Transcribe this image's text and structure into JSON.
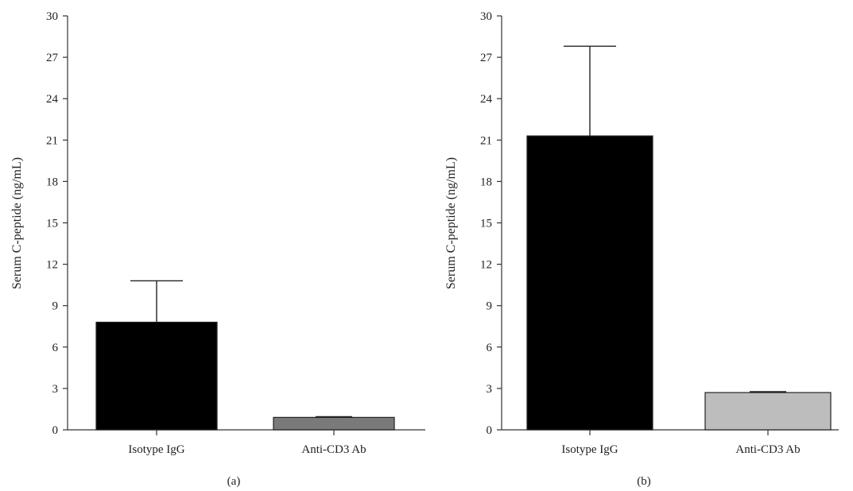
{
  "chart_data": [
    {
      "type": "bar",
      "panel_label": "(a)",
      "ylabel": "Serum C-peptide (ng/mL)",
      "xlabel": "",
      "ylim": [
        0,
        30
      ],
      "yticks": [
        0,
        3,
        6,
        9,
        12,
        15,
        18,
        21,
        24,
        27,
        30
      ],
      "yticks_text": [
        "0",
        "3",
        "6",
        "9",
        "12",
        "15",
        "18",
        "21",
        "24",
        "27",
        "30"
      ],
      "categories": [
        "Isotype IgG",
        "Anti-CD3 Ab"
      ],
      "values": [
        7.8,
        0.9
      ],
      "errors": [
        3.0,
        0.05
      ],
      "colors": [
        "#000000",
        "#7a7a7a"
      ],
      "grid": false
    },
    {
      "type": "bar",
      "panel_label": "(b)",
      "ylabel": "Serum C-peptide (ng/mL)",
      "xlabel": "",
      "ylim": [
        0,
        30
      ],
      "yticks": [
        0,
        3,
        6,
        9,
        12,
        15,
        18,
        21,
        24,
        27,
        30
      ],
      "yticks_text": [
        "0",
        "3",
        "6",
        "9",
        "12",
        "15",
        "18",
        "21",
        "24",
        "27",
        "30"
      ],
      "categories": [
        "Isotype IgG",
        "Anti-CD3 Ab"
      ],
      "values": [
        21.3,
        2.7
      ],
      "errors": [
        6.5,
        0.07
      ],
      "colors": [
        "#000000",
        "#bdbdbd"
      ],
      "grid": false
    }
  ]
}
